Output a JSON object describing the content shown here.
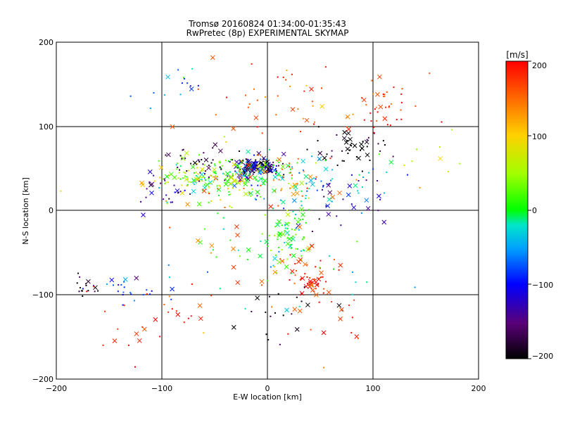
{
  "chart_data": {
    "type": "scatter",
    "title": "Tromsø 20160824 01:34:00-01:35:43",
    "subtitle": "RwPretec (8p) EXPERIMENTAL SKYMAP",
    "xlabel": "E-W location [km]",
    "ylabel": "N-S location [km]",
    "xlim": [
      -200,
      200
    ],
    "ylim": [
      -200,
      200
    ],
    "x_ticks": [
      "−200",
      "−100",
      "0",
      "100",
      "200"
    ],
    "y_ticks": [
      "−200",
      "−100",
      "0",
      "100",
      "200"
    ],
    "grid": true,
    "colorbar": {
      "label": "[m/s]",
      "range": [
        -200,
        200
      ],
      "ticks": [
        "200",
        "100",
        "0",
        "−100",
        "−200"
      ],
      "colormap": "rainbow (black-purple-blue-cyan-green-yellow-red)"
    },
    "clusters": [
      {
        "x": -10,
        "y": 52,
        "sx": 10,
        "sy": 5,
        "v": -190,
        "n": 90
      },
      {
        "x": -15,
        "y": 50,
        "sx": 12,
        "sy": 6,
        "v": -110,
        "n": 80
      },
      {
        "x": -35,
        "y": 42,
        "sx": 28,
        "sy": 12,
        "v": 10,
        "n": 140
      },
      {
        "x": -55,
        "y": 35,
        "sx": 35,
        "sy": 14,
        "v": 80,
        "n": 80
      },
      {
        "x": -60,
        "y": 55,
        "sx": 20,
        "sy": 10,
        "v": -180,
        "n": 40
      },
      {
        "x": 15,
        "y": 40,
        "sx": 25,
        "sy": 12,
        "v": 150,
        "n": 45
      },
      {
        "x": 40,
        "y": 30,
        "sx": 40,
        "sy": 18,
        "v": -40,
        "n": 60
      },
      {
        "x": 22,
        "y": -30,
        "sx": 12,
        "sy": 18,
        "v": 10,
        "n": 70
      },
      {
        "x": 45,
        "y": -85,
        "sx": 8,
        "sy": 7,
        "v": 195,
        "n": 35
      },
      {
        "x": 35,
        "y": -70,
        "sx": 20,
        "sy": 15,
        "v": 170,
        "n": 25
      },
      {
        "x": 80,
        "y": 75,
        "sx": 15,
        "sy": 10,
        "v": -200,
        "n": 45
      },
      {
        "x": 110,
        "y": 110,
        "sx": 20,
        "sy": 15,
        "v": 190,
        "n": 25
      },
      {
        "x": 30,
        "y": 130,
        "sx": 60,
        "sy": 25,
        "v": 160,
        "n": 60
      },
      {
        "x": -90,
        "y": 145,
        "sx": 15,
        "sy": 15,
        "v": -60,
        "n": 15
      },
      {
        "x": -130,
        "y": -95,
        "sx": 20,
        "sy": 8,
        "v": -90,
        "n": 25
      },
      {
        "x": -170,
        "y": -88,
        "sx": 10,
        "sy": 6,
        "v": -200,
        "n": 15
      },
      {
        "x": -120,
        "y": -140,
        "sx": 30,
        "sy": 20,
        "v": 180,
        "n": 25
      },
      {
        "x": -100,
        "y": 25,
        "sx": 15,
        "sy": 10,
        "v": -150,
        "n": 25
      },
      {
        "x": 60,
        "y": 10,
        "sx": 30,
        "sy": 20,
        "v": -130,
        "n": 35
      },
      {
        "x": 0,
        "y": -60,
        "sx": 50,
        "sy": 30,
        "v": -10,
        "n": 45
      },
      {
        "x": 15,
        "y": -110,
        "sx": 25,
        "sy": 20,
        "v": -190,
        "n": 20
      },
      {
        "x": 60,
        "y": -120,
        "sx": 20,
        "sy": 20,
        "v": 175,
        "n": 15
      },
      {
        "x": -40,
        "y": -50,
        "sx": 40,
        "sy": 40,
        "v": 150,
        "n": 25
      },
      {
        "x": 150,
        "y": 60,
        "sx": 25,
        "sy": 20,
        "v": 60,
        "n": 10
      }
    ]
  }
}
